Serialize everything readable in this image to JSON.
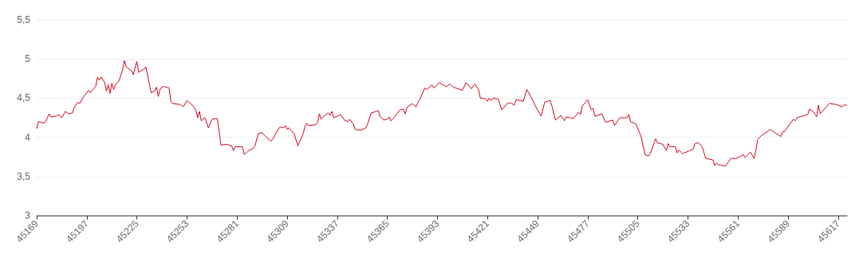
{
  "chart_data": {
    "type": "line",
    "xlim": [
      45169,
      45622
    ],
    "xticks": [
      45169,
      45197,
      45225,
      45253,
      45281,
      45309,
      45337,
      45365,
      45393,
      45421,
      45449,
      45477,
      45505,
      45533,
      45561,
      45589,
      45617
    ],
    "ylim": [
      3,
      5.5
    ],
    "yticks": [
      {
        "value": 3,
        "label": "3"
      },
      {
        "value": 3.5,
        "label": "3,5"
      },
      {
        "value": 4,
        "label": "4"
      },
      {
        "value": 4.5,
        "label": "4,5"
      },
      {
        "value": 5,
        "label": "5"
      },
      {
        "value": 5.5,
        "label": "5,5"
      }
    ],
    "grid": "y",
    "marker": "none",
    "line_style": "solid",
    "series": [
      {
        "color": "#d0021b",
        "x": [
          45169,
          45170,
          45173,
          45174,
          45176,
          45177,
          45180,
          45181,
          45183,
          45185,
          45187,
          45189,
          45190,
          45192,
          45193,
          45195,
          45196,
          45198,
          45199,
          45202,
          45203,
          45204,
          45205,
          45207,
          45208,
          45209,
          45210,
          45211,
          45212,
          45213,
          45215,
          45217,
          45218,
          45219,
          45222,
          45223,
          45225,
          45226,
          45229,
          45230,
          45232,
          45233,
          45235,
          45236,
          45237,
          45238,
          45240,
          45243,
          45244,
          45245,
          45249,
          45251,
          45253,
          45256,
          45258,
          45259,
          45260,
          45261,
          45263,
          45265,
          45267,
          45270,
          45272,
          45275,
          45278,
          45279,
          45280,
          45284,
          45285,
          45287,
          45290,
          45291,
          45293,
          45295,
          45297,
          45300,
          45301,
          45304,
          45305,
          45307,
          45308,
          45309,
          45310,
          45313,
          45315,
          45318,
          45319,
          45320,
          45321,
          45325,
          45326,
          45327,
          45328,
          45330,
          45332,
          45333,
          45334,
          45335,
          45339,
          45341,
          45343,
          45344,
          45346,
          45347,
          45350,
          45353,
          45354,
          45356,
          45360,
          45361,
          45363,
          45365,
          45366,
          45367,
          45369,
          45372,
          45374,
          45375,
          45376,
          45379,
          45380,
          45381,
          45383,
          45386,
          45387,
          45390,
          45391,
          45392,
          45394,
          45396,
          45398,
          45400,
          45402,
          45407,
          45409,
          45412,
          45414,
          45416,
          45417,
          45420,
          45421,
          45422,
          45423,
          45424,
          45427,
          45429,
          45432,
          45434,
          45436,
          45437,
          45441,
          45443,
          45445,
          45448,
          45451,
          45453,
          45456,
          45457,
          45459,
          45462,
          45464,
          45465,
          45469,
          45472,
          45473,
          45474,
          45477,
          45479,
          45480,
          45481,
          45485,
          45487,
          45491,
          45492,
          45495,
          45499,
          45500,
          45501,
          45504,
          45507,
          45509,
          45511,
          45512,
          45514,
          45515,
          45516,
          45519,
          45521,
          45522,
          45523,
          45526,
          45527,
          45528,
          45530,
          45536,
          45537,
          45539,
          45541,
          45543,
          45547,
          45548,
          45549,
          45550,
          45554,
          45557,
          45560,
          45562,
          45564,
          45565,
          45568,
          45570,
          45571,
          45572,
          45574,
          45578,
          45579,
          45585,
          45586,
          45587,
          45591,
          45592,
          45593,
          45594,
          45600,
          45601,
          45603,
          45605,
          45606,
          45607,
          45612,
          45616,
          45619,
          45621,
          45622
        ],
        "values": [
          4.11,
          4.2,
          4.18,
          4.2,
          4.3,
          4.26,
          4.27,
          4.29,
          4.25,
          4.33,
          4.3,
          4.31,
          4.38,
          4.45,
          4.43,
          4.51,
          4.54,
          4.6,
          4.57,
          4.65,
          4.77,
          4.73,
          4.77,
          4.7,
          4.59,
          4.67,
          4.56,
          4.69,
          4.61,
          4.67,
          4.72,
          4.86,
          4.98,
          4.9,
          4.85,
          4.8,
          4.97,
          4.83,
          4.87,
          4.9,
          4.68,
          4.57,
          4.59,
          4.64,
          4.52,
          4.62,
          4.65,
          4.63,
          4.46,
          4.43,
          4.42,
          4.39,
          4.47,
          4.41,
          4.35,
          4.25,
          4.33,
          4.21,
          4.25,
          4.12,
          4.23,
          4.24,
          3.9,
          3.91,
          3.89,
          3.83,
          3.88,
          3.88,
          3.78,
          3.82,
          3.86,
          3.89,
          4.05,
          4.06,
          4.01,
          3.95,
          3.98,
          4.1,
          4.13,
          4.12,
          4.15,
          4.1,
          4.12,
          4.04,
          3.89,
          4.05,
          4.14,
          4.18,
          4.15,
          4.16,
          4.19,
          4.3,
          4.23,
          4.28,
          4.31,
          4.28,
          4.33,
          4.25,
          4.29,
          4.22,
          4.2,
          4.23,
          4.17,
          4.1,
          4.09,
          4.12,
          4.17,
          4.31,
          4.34,
          4.26,
          4.22,
          4.23,
          4.26,
          4.21,
          4.26,
          4.35,
          4.36,
          4.3,
          4.38,
          4.43,
          4.41,
          4.39,
          4.48,
          4.63,
          4.61,
          4.67,
          4.63,
          4.65,
          4.7,
          4.67,
          4.65,
          4.68,
          4.64,
          4.6,
          4.7,
          4.62,
          4.68,
          4.61,
          4.5,
          4.49,
          4.46,
          4.5,
          4.47,
          4.5,
          4.49,
          4.35,
          4.43,
          4.44,
          4.41,
          4.48,
          4.46,
          4.61,
          4.53,
          4.39,
          4.27,
          4.45,
          4.47,
          4.4,
          4.22,
          4.28,
          4.21,
          4.26,
          4.24,
          4.32,
          4.29,
          4.4,
          4.48,
          4.35,
          4.37,
          4.27,
          4.3,
          4.19,
          4.22,
          4.15,
          4.25,
          4.25,
          4.29,
          4.2,
          4.17,
          4,
          3.78,
          3.76,
          3.79,
          3.92,
          3.98,
          3.93,
          3.91,
          3.83,
          3.92,
          3.88,
          3.88,
          3.8,
          3.84,
          3.79,
          3.85,
          3.92,
          3.93,
          3.88,
          3.73,
          3.71,
          3.64,
          3.67,
          3.65,
          3.63,
          3.73,
          3.73,
          3.75,
          3.78,
          3.74,
          3.81,
          3.73,
          3.83,
          3.97,
          4.02,
          4.08,
          4.1,
          4.01,
          4.07,
          4.07,
          4.2,
          4.23,
          4.21,
          4.25,
          4.29,
          4.36,
          4.33,
          4.26,
          4.41,
          4.3,
          4.43,
          4.42,
          4.39,
          4.42,
          4.4
        ]
      }
    ]
  }
}
